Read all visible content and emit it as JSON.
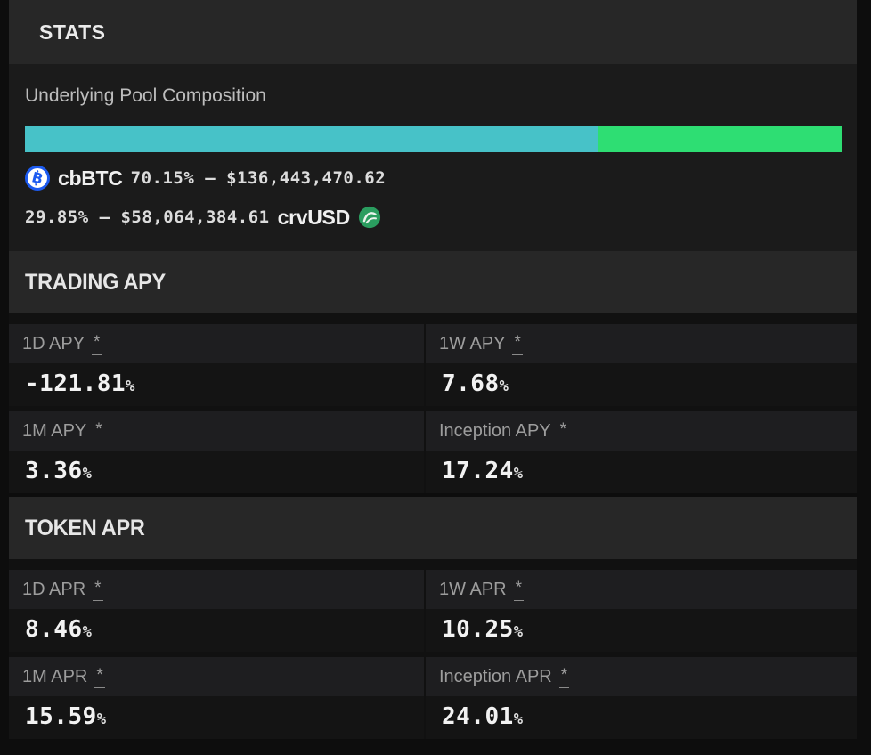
{
  "header": {
    "title": "STATS"
  },
  "composition": {
    "title": "Underlying Pool Composition",
    "bar": {
      "segments": [
        {
          "name": "cbBTC",
          "pct": 70.15,
          "color": "#47c2c8"
        },
        {
          "name": "crvUSD",
          "pct": 29.85,
          "color": "#2ede73"
        }
      ]
    },
    "rows": [
      {
        "token": "cbBTC",
        "stats": "70.15% — $136,443,470.62",
        "icon": "cbbtc-icon"
      },
      {
        "token": "crvUSD",
        "stats": "29.85% — $58,064,384.61",
        "icon": "crvusd-icon"
      }
    ]
  },
  "trading_apy": {
    "title": "TRADING APY",
    "cells": [
      {
        "label": "1D APY",
        "marker": "*",
        "value": "-121.81",
        "unit": "%"
      },
      {
        "label": "1W APY",
        "marker": "*",
        "value": "7.68",
        "unit": "%"
      },
      {
        "label": "1M APY",
        "marker": "*",
        "value": "3.36",
        "unit": "%"
      },
      {
        "label": "Inception APY",
        "marker": "*",
        "value": "17.24",
        "unit": "%"
      }
    ]
  },
  "token_apr": {
    "title": "TOKEN APR",
    "cells": [
      {
        "label": "1D APR",
        "marker": "*",
        "value": "8.46",
        "unit": "%"
      },
      {
        "label": "1W APR",
        "marker": "*",
        "value": "10.25",
        "unit": "%"
      },
      {
        "label": "1M APR",
        "marker": "*",
        "value": "15.59",
        "unit": "%"
      },
      {
        "label": "Inception APR",
        "marker": "*",
        "value": "24.01",
        "unit": "%"
      }
    ]
  },
  "colors": {
    "page_bg": "#0d0d0d",
    "header_bg": "#272727",
    "composition_bg": "#1b1b1b",
    "label_row_bg": "#1e1e20",
    "value_row_bg": "#141414",
    "cbbtc_blue": "#1d5bf0",
    "crvusd_green": "#2a9d5f"
  }
}
